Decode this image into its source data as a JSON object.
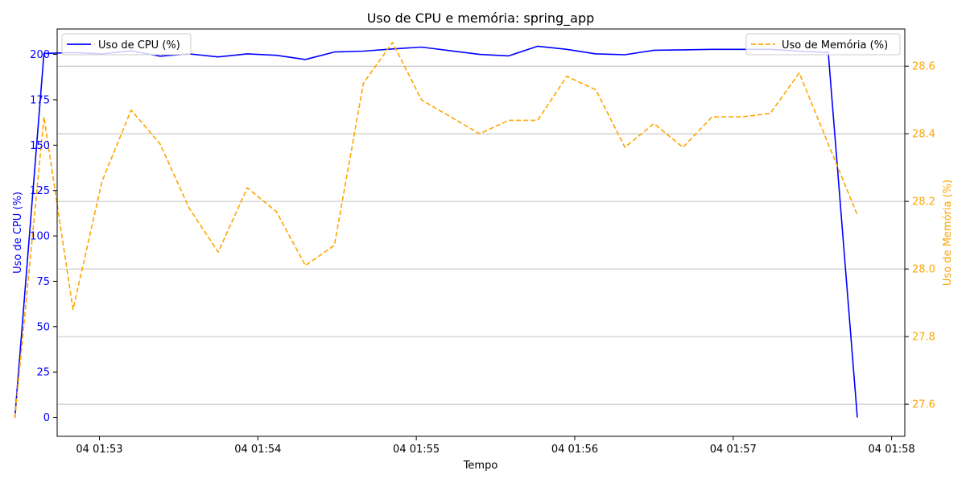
{
  "chart_data": {
    "type": "line",
    "title": "Uso de CPU e memória: spring_app",
    "xlabel": "Tempo",
    "ylabel_left": "Uso de CPU (%)",
    "ylabel_right": "Uso de Memória (%)",
    "x_ticks": [
      "04 01:53",
      "04 01:54",
      "04 01:55",
      "04 01:56",
      "04 01:57",
      "04 01:58"
    ],
    "x_tick_times": [
      "01:53:00",
      "01:54:00",
      "01:55:00",
      "01:56:00",
      "01:57:00",
      "01:58:00"
    ],
    "xlim": [
      "01:52:44",
      "01:58:05"
    ],
    "y_left_ticks": [
      0,
      25,
      50,
      75,
      100,
      125,
      150,
      175,
      200
    ],
    "y_left_lim": [
      -10.4,
      214
    ],
    "y_right_ticks": [
      27.6,
      27.8,
      28.0,
      28.2,
      28.4,
      28.6
    ],
    "y_right_lim": [
      27.505,
      28.71
    ],
    "grid": "right-axis horizontal gridlines",
    "colors": {
      "cpu": "#0000ff",
      "memory": "#ffa500",
      "grid": "#b0b0b0"
    },
    "x": [
      "01:52:28",
      "01:52:39",
      "01:52:50",
      "01:53:01",
      "01:53:12",
      "01:53:23",
      "01:53:34",
      "01:53:45",
      "01:53:56",
      "01:54:07",
      "01:54:18",
      "01:54:29",
      "01:54:40",
      "01:54:51",
      "01:55:02",
      "01:55:13",
      "01:55:24",
      "01:55:35",
      "01:55:46",
      "01:55:57",
      "01:56:08",
      "01:56:19",
      "01:56:30",
      "01:56:41",
      "01:56:52",
      "01:57:03",
      "01:57:14",
      "01:57:25",
      "01:57:36",
      "01:57:47"
    ],
    "series": [
      {
        "name": "Uso de CPU (%)",
        "axis": "left",
        "style": "solid",
        "values": [
          0,
          200.5,
          201,
          200.3,
          202,
          199,
          200.3,
          198.6,
          200.3,
          199.5,
          197.2,
          201.3,
          201.8,
          203,
          204,
          202,
          200,
          199.2,
          204.5,
          202.8,
          200.3,
          199.8,
          202.3,
          202.5,
          202.8,
          202.8,
          202.8,
          201.8,
          201,
          0
        ]
      },
      {
        "name": "Uso de Memória (%)",
        "axis": "right",
        "style": "dashed",
        "values": [
          27.56,
          28.45,
          27.88,
          28.26,
          28.47,
          28.37,
          28.18,
          28.05,
          28.24,
          28.17,
          28.01,
          28.07,
          28.55,
          28.67,
          28.5,
          28.45,
          28.4,
          28.44,
          28.44,
          28.57,
          28.53,
          28.36,
          28.43,
          28.36,
          28.45,
          28.45,
          28.46,
          28.58,
          28.37,
          28.16
        ]
      }
    ],
    "legend_left": {
      "label": "Uso de CPU (%)",
      "placement": "upper-left"
    },
    "legend_right": {
      "label": "Uso de Memória (%)",
      "placement": "upper-right"
    }
  }
}
